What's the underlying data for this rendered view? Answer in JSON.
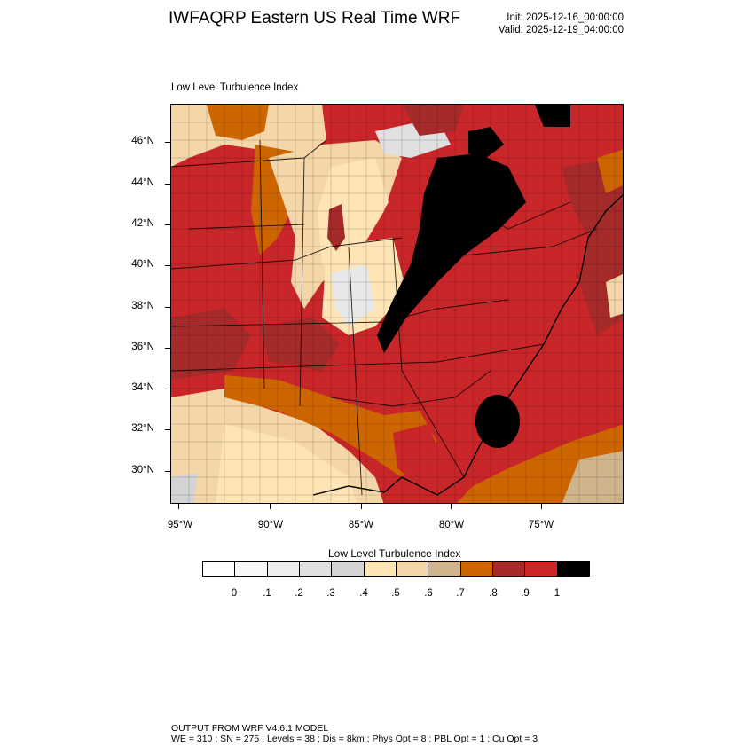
{
  "header": {
    "title": "IWFAQRP Eastern US Real Time WRF",
    "init": "Init: 2025-12-16_00:00:00",
    "valid": "Valid: 2025-12-19_04:00:00"
  },
  "map": {
    "subtitle": "Low Level Turbulence Index",
    "lat_labels": [
      "46°N",
      "44°N",
      "42°N",
      "40°N",
      "38°N",
      "36°N",
      "34°N",
      "32°N",
      "30°N"
    ],
    "lon_labels": [
      "95°W",
      "90°W",
      "85°W",
      "80°W",
      "75°W"
    ]
  },
  "colorbar": {
    "title": "Low Level Turbulence Index",
    "colors": [
      "#ffffff",
      "#f7f7f7",
      "#eeeeee",
      "#e0e0e0",
      "#d4d4d4",
      "#ffe4b5",
      "#f5d6a8",
      "#d2b48c",
      "#cd6600",
      "#a52a2a",
      "#cd2626",
      "#000000"
    ],
    "labels": [
      "0",
      ".1",
      ".2",
      ".3",
      ".4",
      ".5",
      ".6",
      ".7",
      ".8",
      ".9",
      "1"
    ]
  },
  "footer": {
    "line1": "OUTPUT FROM WRF V4.6.1 MODEL",
    "line2": "WE = 310 ; SN = 275 ; Levels = 38 ; Dis = 8km ; Phys Opt = 8 ; PBL Opt = 1 ; Cu Opt = 3"
  }
}
